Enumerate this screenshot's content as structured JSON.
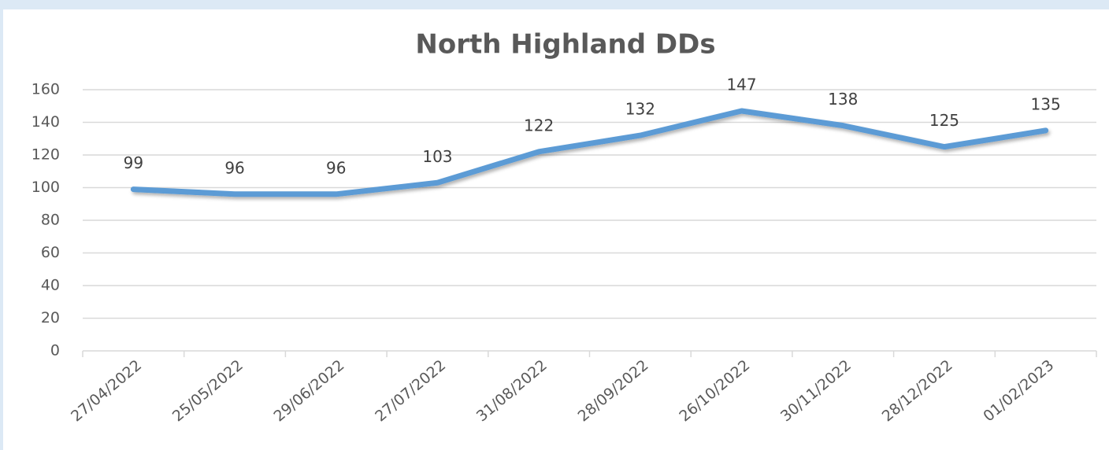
{
  "chart_data": {
    "type": "line",
    "title": "North Highland DDs",
    "categories": [
      "27/04/2022",
      "25/05/2022",
      "29/06/2022",
      "27/07/2022",
      "31/08/2022",
      "28/09/2022",
      "26/10/2022",
      "30/11/2022",
      "28/12/2022",
      "01/02/2023"
    ],
    "values": [
      99,
      96,
      96,
      103,
      122,
      132,
      147,
      138,
      125,
      135
    ],
    "color": "#5b9bd5",
    "ylim": [
      0,
      160
    ],
    "yticks": [
      0,
      20,
      40,
      60,
      80,
      100,
      120,
      140,
      160
    ],
    "grid": true
  }
}
